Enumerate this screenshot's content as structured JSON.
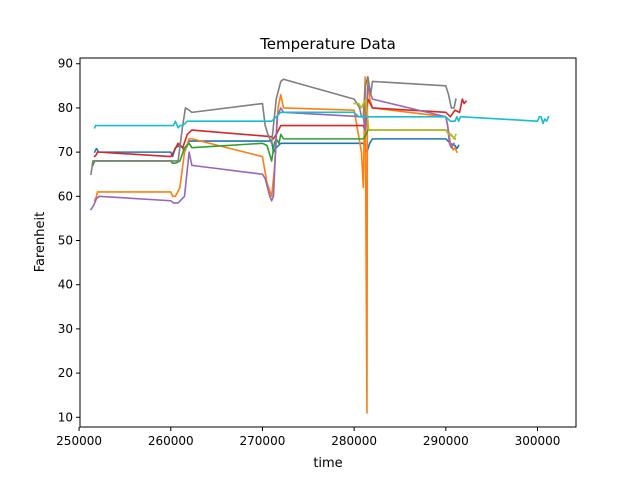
{
  "chart_data": {
    "type": "line",
    "title": "Temperature Data",
    "xlabel": "time",
    "ylabel": "Farenheit",
    "xlim": [
      250100,
      304200
    ],
    "ylim": [
      7.8,
      91.3
    ],
    "xticks": [
      250000,
      260000,
      270000,
      280000,
      290000,
      300000
    ],
    "yticks": [
      10,
      20,
      30,
      40,
      50,
      60,
      70,
      80,
      90
    ],
    "grid": false,
    "legend": "none",
    "series": [
      {
        "color": "#1f77b4",
        "x": [
          251700,
          251800,
          251900,
          252000,
          252100,
          260000,
          260200,
          260500,
          261000,
          261300,
          261500,
          262000,
          271000,
          271200,
          271500,
          272000,
          281000,
          281400,
          281700,
          282000,
          290000,
          290500,
          291000,
          291200,
          291400
        ],
        "values": [
          70,
          70.5,
          70.8,
          70.5,
          70,
          70,
          69,
          71,
          71.5,
          71,
          70,
          72.5,
          72.5,
          70,
          71,
          72,
          72,
          70,
          72,
          73,
          73,
          72,
          71.5,
          70.8,
          71.5
        ]
      },
      {
        "color": "#ff7f0e",
        "x": [
          251700,
          251900,
          252000,
          252200,
          260000,
          260200,
          260500,
          261000,
          261500,
          262000,
          262300,
          270000,
          270500,
          271000,
          271300,
          271700,
          272000,
          272300,
          280000,
          280800,
          281000,
          281200,
          281400,
          281450,
          281500,
          281700,
          282000,
          290000,
          290200,
          290500,
          290800,
          291000,
          291200
        ],
        "values": [
          59,
          60,
          61,
          61,
          61,
          60,
          60,
          62,
          70,
          73,
          73,
          69,
          63,
          60,
          66,
          80,
          83,
          80,
          79.5,
          70,
          62,
          87,
          11,
          87,
          87,
          82,
          80,
          78,
          76,
          72,
          70.5,
          71,
          70
        ]
      },
      {
        "color": "#2ca02c",
        "x": [
          251500,
          251700,
          252000,
          252200,
          260000,
          260200,
          260500,
          261000,
          261500,
          262000,
          262300,
          270000,
          270500,
          271000,
          271300,
          271500,
          271800,
          272000,
          272300,
          281000,
          281300,
          281500,
          282000,
          290000,
          290500,
          291000
        ],
        "values": [
          67,
          68,
          68,
          68,
          68,
          67.5,
          67.5,
          68,
          71,
          72,
          71,
          72,
          71.5,
          68,
          72,
          73,
          72,
          74,
          73,
          73,
          74,
          75,
          75,
          75,
          74,
          73
        ]
      },
      {
        "color": "#d62728",
        "x": [
          251700,
          251900,
          252000,
          252200,
          260000,
          260300,
          260800,
          261300,
          261800,
          262300,
          271000,
          271200,
          271500,
          272000,
          281000,
          281200,
          281500,
          282000,
          290000,
          290500,
          291000,
          291500,
          291800,
          292000,
          292200
        ],
        "values": [
          69,
          69.5,
          70,
          70,
          69,
          70,
          72,
          71,
          74,
          75,
          73.5,
          73,
          74,
          76,
          76,
          75,
          82,
          80,
          79,
          78,
          79.5,
          79,
          82,
          81,
          81.5
        ]
      },
      {
        "color": "#9467bd",
        "x": [
          251300,
          251600,
          251900,
          252200,
          260000,
          260300,
          260800,
          261500,
          262000,
          262300,
          270000,
          270300,
          270800,
          271000,
          271200,
          271600,
          272000,
          272300,
          281000,
          281200,
          281500,
          282000,
          290000,
          290200,
          290400,
          290600,
          290900
        ],
        "values": [
          57,
          58,
          59.5,
          60,
          59,
          58.5,
          58.5,
          60,
          70,
          67,
          65,
          64,
          60,
          59,
          60,
          78,
          80,
          79,
          78,
          75,
          85,
          82,
          78,
          76,
          72,
          71,
          72
        ]
      },
      {
        "color": "#7f7f7f",
        "x": [
          251300,
          251500,
          251700,
          251900,
          252200,
          260000,
          260500,
          260800,
          261300,
          261600,
          262000,
          262300,
          270000,
          270300,
          270600,
          271000,
          271500,
          272000,
          272300,
          280000,
          280600,
          280800,
          281000,
          281200,
          281500,
          281800,
          282000,
          290000,
          290300,
          290600,
          290900,
          291100
        ],
        "values": [
          65,
          68,
          68,
          68,
          68,
          68,
          68,
          68,
          76,
          80,
          79.5,
          79,
          81,
          76,
          74,
          72,
          82,
          86,
          86.5,
          82,
          80,
          78,
          78,
          85,
          87,
          83,
          86,
          85,
          83,
          80,
          80,
          82
        ]
      },
      {
        "color": "#bcbd22",
        "x": [
          280000,
          280500,
          280800,
          281000,
          281300,
          281600,
          282000,
          290000,
          290300,
          290600,
          290900,
          291100
        ],
        "values": [
          81,
          81,
          80,
          81,
          82,
          75,
          75,
          75,
          74,
          74,
          73,
          74
        ]
      },
      {
        "color": "#17becf",
        "x": [
          251700,
          251800,
          252000,
          260000,
          260300,
          260500,
          260800,
          261000,
          261300,
          261800,
          262300,
          270000,
          270500,
          271000,
          271500,
          272000,
          280000,
          280500,
          281000,
          281500,
          282000,
          290000,
          290500,
          291000,
          291200,
          291400,
          291600,
          291800,
          300000,
          300200,
          300400,
          300600,
          300800,
          301000,
          301200
        ],
        "values": [
          75.5,
          76,
          76,
          76,
          76,
          77,
          75.5,
          76,
          76,
          77,
          77,
          77,
          77,
          77,
          78,
          79,
          79,
          78,
          78,
          78,
          78,
          78,
          77,
          77,
          78,
          77,
          78,
          78,
          77,
          78,
          78,
          76.5,
          77.5,
          77,
          78
        ]
      }
    ]
  }
}
